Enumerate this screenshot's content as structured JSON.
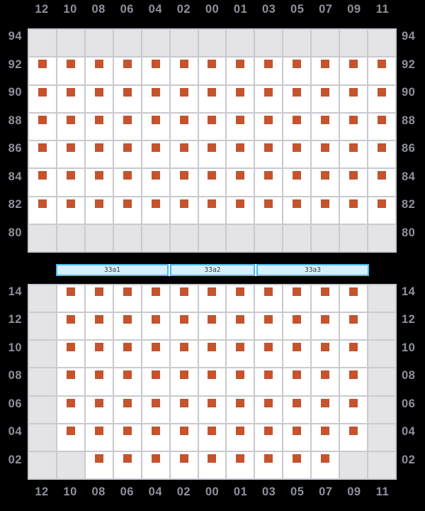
{
  "palette": {
    "background": "#000000",
    "cell_open": "#ffffff",
    "cell_blocked": "#e4e4e7",
    "grid_line": "#c9cad0",
    "container_marker": "#c5532d",
    "axis_label": "#8d919b",
    "bar_border": "#4ab9ec",
    "bar_fill": "#d9eefb",
    "bar_text": "#3c3c3c"
  },
  "columns": [
    "12",
    "10",
    "08",
    "06",
    "04",
    "02",
    "00",
    "01",
    "03",
    "05",
    "07",
    "09",
    "11"
  ],
  "cell_legend": {
    "g": "blocked",
    "o": "occupied"
  },
  "top_grid": {
    "rows": [
      {
        "label": "94",
        "cells": "ggggggggggggg"
      },
      {
        "label": "92",
        "cells": "ooooooooooooo"
      },
      {
        "label": "90",
        "cells": "ooooooooooooo"
      },
      {
        "label": "88",
        "cells": "ooooooooooooo"
      },
      {
        "label": "86",
        "cells": "ooooooooooooo"
      },
      {
        "label": "84",
        "cells": "ooooooooooooo"
      },
      {
        "label": "82",
        "cells": "ooooooooooooo"
      },
      {
        "label": "80",
        "cells": "ggggggggggggg"
      }
    ]
  },
  "bay_bar": {
    "segments": [
      {
        "label": "33a1",
        "span": 4
      },
      {
        "label": "33a2",
        "span": 3
      },
      {
        "label": "33a3",
        "span": 4
      }
    ]
  },
  "bottom_grid": {
    "rows": [
      {
        "label": "14",
        "cells": "gooooooooooog"
      },
      {
        "label": "12",
        "cells": "gooooooooooog"
      },
      {
        "label": "10",
        "cells": "gooooooooooog"
      },
      {
        "label": "08",
        "cells": "gooooooooooog"
      },
      {
        "label": "06",
        "cells": "gooooooooooog"
      },
      {
        "label": "04",
        "cells": "gooooooooooog"
      },
      {
        "label": "02",
        "cells": "ggooooooooogg"
      }
    ]
  }
}
